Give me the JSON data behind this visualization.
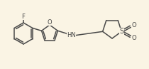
{
  "bg_color": "#faf4e4",
  "bond_color": "#4a4a4a",
  "atom_color": "#4a4a4a",
  "line_width": 1.1,
  "figsize": [
    2.1,
    0.97
  ],
  "dpi": 100,
  "xlim": [
    0,
    210
  ],
  "ylim": [
    0,
    97
  ]
}
